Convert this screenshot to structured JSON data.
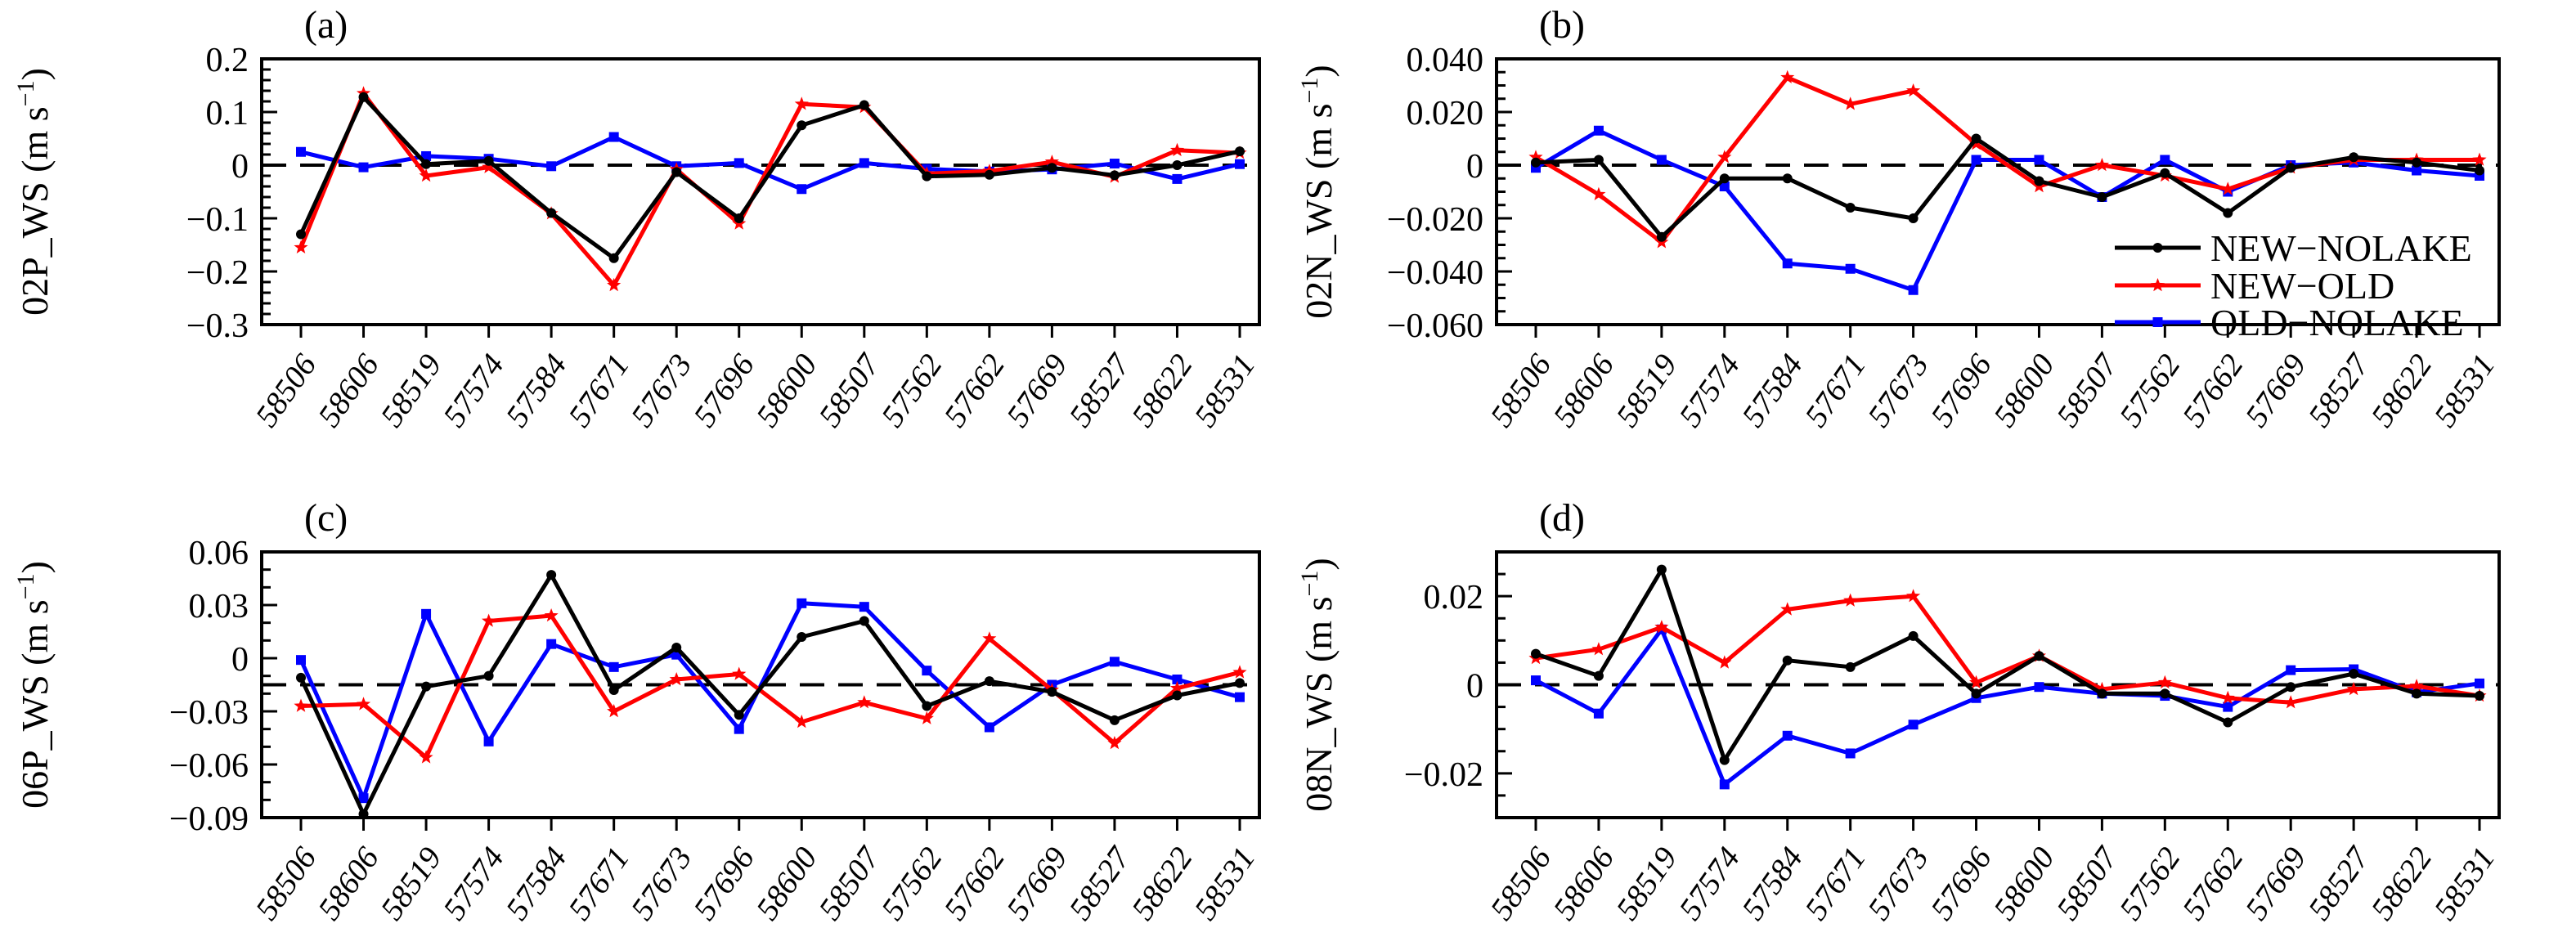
{
  "figure": {
    "background": "#ffffff",
    "stations": [
      "58506",
      "58606",
      "58519",
      "57574",
      "57584",
      "57671",
      "57673",
      "57696",
      "58600",
      "58507",
      "57562",
      "57662",
      "57669",
      "58527",
      "58622",
      "58531"
    ],
    "legend": {
      "position": "inside-bottom-right-of-panel-b",
      "items": [
        {
          "label": "NEW−NOLAKE",
          "color": "#000000",
          "marker": "circle"
        },
        {
          "label": "NEW−OLD",
          "color": "#ff0000",
          "marker": "star"
        },
        {
          "label": "OLD−NOLAKE",
          "color": "#0000ff",
          "marker": "square"
        }
      ]
    }
  },
  "chart_data": [
    {
      "type": "line",
      "panel_label": "(a)",
      "ylabel": {
        "name": "02P_WS",
        "unit_open": " (m s",
        "sup": "−1",
        "unit_close": ")"
      },
      "x_categories": [
        "58506",
        "58606",
        "58519",
        "57574",
        "57584",
        "57671",
        "57673",
        "57696",
        "58600",
        "58507",
        "57562",
        "57662",
        "57669",
        "58527",
        "58622",
        "58531"
      ],
      "ylim": [
        -0.3,
        0.2
      ],
      "yticks": [
        {
          "v": 0.2,
          "label": "0.2"
        },
        {
          "v": 0.1,
          "label": "0.1"
        },
        {
          "v": 0,
          "label": "0"
        },
        {
          "v": -0.1,
          "label": "−0.1"
        },
        {
          "v": -0.2,
          "label": "−0.2"
        },
        {
          "v": -0.3,
          "label": "−0.3"
        }
      ],
      "minor_step": 0.02,
      "refline": 0,
      "grid": false,
      "show_legend": false,
      "series": [
        {
          "name": "NEW−NOLAKE",
          "color": "#000000",
          "marker": "circle",
          "values": [
            -0.13,
            0.128,
            0.002,
            0.008,
            -0.09,
            -0.175,
            -0.013,
            -0.1,
            0.075,
            0.113,
            -0.021,
            -0.018,
            -0.005,
            -0.019,
            0.0,
            0.026
          ]
        },
        {
          "name": "NEW−OLD",
          "color": "#ff0000",
          "marker": "star",
          "values": [
            -0.155,
            0.135,
            -0.02,
            -0.004,
            -0.091,
            -0.226,
            -0.008,
            -0.11,
            0.115,
            0.109,
            -0.016,
            -0.011,
            0.006,
            -0.022,
            0.028,
            0.023
          ]
        },
        {
          "name": "OLD−NOLAKE",
          "color": "#0000ff",
          "marker": "square",
          "values": [
            0.025,
            -0.004,
            0.017,
            0.012,
            -0.002,
            0.053,
            -0.002,
            0.004,
            -0.045,
            0.004,
            -0.007,
            -0.012,
            -0.008,
            0.003,
            -0.026,
            0.002
          ]
        }
      ]
    },
    {
      "type": "line",
      "panel_label": "(b)",
      "ylabel": {
        "name": "02N_WS",
        "unit_open": " (m s",
        "sup": "−1",
        "unit_close": ")"
      },
      "x_categories": [
        "58506",
        "58606",
        "58519",
        "57574",
        "57584",
        "57671",
        "57673",
        "57696",
        "58600",
        "58507",
        "57562",
        "57662",
        "57669",
        "58527",
        "58622",
        "58531"
      ],
      "ylim": [
        -0.06,
        0.04
      ],
      "yticks": [
        {
          "v": 0.04,
          "label": "0.040"
        },
        {
          "v": 0.02,
          "label": "0.020"
        },
        {
          "v": 0,
          "label": "0"
        },
        {
          "v": -0.02,
          "label": "−0.020"
        },
        {
          "v": -0.04,
          "label": "−0.040"
        },
        {
          "v": -0.06,
          "label": "−0.060"
        }
      ],
      "minor_step": 0.005,
      "refline": 0,
      "grid": false,
      "show_legend": true,
      "series": [
        {
          "name": "NEW−NOLAKE",
          "color": "#000000",
          "marker": "circle",
          "values": [
            0.001,
            0.002,
            -0.027,
            -0.005,
            -0.005,
            -0.016,
            -0.02,
            0.01,
            -0.006,
            -0.012,
            -0.003,
            -0.018,
            -0.001,
            0.003,
            0.001,
            -0.002
          ]
        },
        {
          "name": "NEW−OLD",
          "color": "#ff0000",
          "marker": "star",
          "values": [
            0.003,
            -0.011,
            -0.029,
            0.003,
            0.033,
            0.023,
            0.028,
            0.008,
            -0.008,
            0.0,
            -0.004,
            -0.009,
            -0.001,
            0.002,
            0.002,
            0.002
          ]
        },
        {
          "name": "OLD−NOLAKE",
          "color": "#0000ff",
          "marker": "square",
          "values": [
            -0.001,
            0.013,
            0.002,
            -0.008,
            -0.037,
            -0.039,
            -0.047,
            0.002,
            0.002,
            -0.012,
            0.002,
            -0.01,
            0.0,
            0.001,
            -0.002,
            -0.004
          ]
        }
      ]
    },
    {
      "type": "line",
      "panel_label": "(c)",
      "ylabel": {
        "name": "06P_WS",
        "unit_open": " (m s",
        "sup": "−1",
        "unit_close": ")"
      },
      "x_categories": [
        "58506",
        "58606",
        "58519",
        "57574",
        "57584",
        "57671",
        "57673",
        "57696",
        "58600",
        "58507",
        "57562",
        "57662",
        "57669",
        "58527",
        "58622",
        "58531"
      ],
      "ylim": [
        -0.09,
        0.06
      ],
      "yticks": [
        {
          "v": 0.06,
          "label": "0.06"
        },
        {
          "v": 0.03,
          "label": "0.03"
        },
        {
          "v": 0,
          "label": "0"
        },
        {
          "v": -0.03,
          "label": "−0.03"
        },
        {
          "v": -0.06,
          "label": "−0.06"
        },
        {
          "v": -0.09,
          "label": "−0.09"
        }
      ],
      "minor_step": 0.01,
      "refline": -0.015,
      "grid": false,
      "show_legend": false,
      "series": [
        {
          "name": "NEW−NOLAKE",
          "color": "#000000",
          "marker": "circle",
          "values": [
            -0.011,
            -0.088,
            -0.016,
            -0.01,
            0.047,
            -0.018,
            0.006,
            -0.032,
            0.012,
            0.021,
            -0.027,
            -0.013,
            -0.019,
            -0.035,
            -0.021,
            -0.014
          ]
        },
        {
          "name": "NEW−OLD",
          "color": "#ff0000",
          "marker": "star",
          "values": [
            -0.027,
            -0.026,
            -0.056,
            0.021,
            0.024,
            -0.03,
            -0.012,
            -0.009,
            -0.036,
            -0.025,
            -0.034,
            0.011,
            -0.018,
            -0.048,
            -0.017,
            -0.008
          ]
        },
        {
          "name": "OLD−NOLAKE",
          "color": "#0000ff",
          "marker": "square",
          "values": [
            -0.001,
            -0.079,
            0.025,
            -0.047,
            0.008,
            -0.005,
            0.002,
            -0.04,
            0.031,
            0.029,
            -0.007,
            -0.039,
            -0.015,
            -0.002,
            -0.012,
            -0.022
          ]
        }
      ]
    },
    {
      "type": "line",
      "panel_label": "(d)",
      "ylabel": {
        "name": "08N_WS",
        "unit_open": " (m s",
        "sup": "−1",
        "unit_close": ")"
      },
      "x_categories": [
        "58506",
        "58606",
        "58519",
        "57574",
        "57584",
        "57671",
        "57673",
        "57696",
        "58600",
        "58507",
        "57562",
        "57662",
        "57669",
        "58527",
        "58622",
        "58531"
      ],
      "ylim": [
        -0.03,
        0.03
      ],
      "yticks": [
        {
          "v": 0.02,
          "label": "0.02"
        },
        {
          "v": 0,
          "label": "0"
        },
        {
          "v": -0.02,
          "label": "−0.02"
        }
      ],
      "minor_step": 0.005,
      "refline": 0,
      "grid": false,
      "show_legend": false,
      "series": [
        {
          "name": "NEW−NOLAKE",
          "color": "#000000",
          "marker": "circle",
          "values": [
            0.007,
            0.002,
            0.026,
            -0.017,
            0.0055,
            0.004,
            0.011,
            -0.002,
            0.0065,
            -0.002,
            -0.002,
            -0.0085,
            -0.0005,
            0.0025,
            -0.002,
            -0.0025
          ]
        },
        {
          "name": "NEW−OLD",
          "color": "#ff0000",
          "marker": "star",
          "values": [
            0.006,
            0.008,
            0.013,
            0.005,
            0.017,
            0.019,
            0.02,
            0.0005,
            0.0065,
            -0.001,
            0.0005,
            -0.003,
            -0.004,
            -0.001,
            -0.0003,
            -0.0025
          ]
        },
        {
          "name": "OLD−NOLAKE",
          "color": "#0000ff",
          "marker": "square",
          "values": [
            0.001,
            -0.0065,
            0.0125,
            -0.0225,
            -0.0115,
            -0.0155,
            -0.009,
            -0.003,
            -0.0005,
            -0.002,
            -0.0025,
            -0.005,
            0.0033,
            0.0035,
            -0.0017,
            0.0003
          ]
        }
      ]
    }
  ]
}
